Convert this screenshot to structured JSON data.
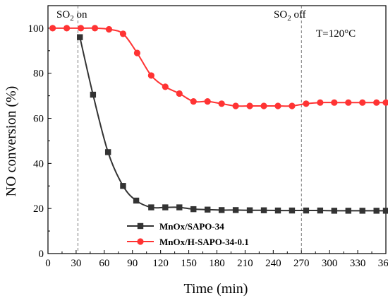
{
  "chart_data": {
    "type": "line",
    "xlabel": "Time (min)",
    "ylabel": "NO conversion (%)",
    "xlim": [
      0,
      360
    ],
    "ylim": [
      0,
      110
    ],
    "xticks": [
      0,
      30,
      60,
      90,
      120,
      150,
      180,
      210,
      240,
      270,
      300,
      330,
      360
    ],
    "yticks": [
      0,
      20,
      40,
      60,
      80,
      100
    ],
    "grid": false,
    "legend_position": "bottom-center",
    "annotations": {
      "so2_on": {
        "prefix": "SO",
        "sub": "2",
        "suffix": " on",
        "x": 32
      },
      "so2_off": {
        "prefix": "SO",
        "sub": "2",
        "suffix": " off",
        "x": 270
      },
      "temperature": "T=120°C"
    },
    "series": [
      {
        "name": "MnOx/SAPO-34",
        "color": "#333333",
        "marker": "square",
        "x": [
          34,
          48,
          64,
          80,
          94,
          110,
          125,
          140,
          155,
          170,
          185,
          200,
          215,
          230,
          245,
          260,
          275,
          290,
          305,
          320,
          335,
          350,
          360
        ],
        "y": [
          96,
          70.5,
          45,
          30,
          23.5,
          20.5,
          20.5,
          20.5,
          19.7,
          19.5,
          19.3,
          19.3,
          19.2,
          19.2,
          19.1,
          19.1,
          19.1,
          19.1,
          19.0,
          19.0,
          19.0,
          19.0,
          19.0
        ]
      },
      {
        "name": "MnOx/H-SAPO-34-0.1",
        "color": "#ff3333",
        "marker": "circle",
        "x": [
          5,
          20,
          35,
          50,
          65,
          80,
          95,
          110,
          125,
          140,
          155,
          170,
          185,
          200,
          215,
          230,
          245,
          260,
          275,
          290,
          305,
          320,
          335,
          350,
          360
        ],
        "y": [
          100,
          100,
          100,
          100,
          99.5,
          97.5,
          89,
          79,
          74,
          71,
          67.5,
          67.5,
          66.5,
          65.5,
          65.5,
          65.5,
          65.5,
          65.5,
          66.5,
          67,
          67,
          67,
          67,
          67,
          67
        ]
      }
    ]
  }
}
